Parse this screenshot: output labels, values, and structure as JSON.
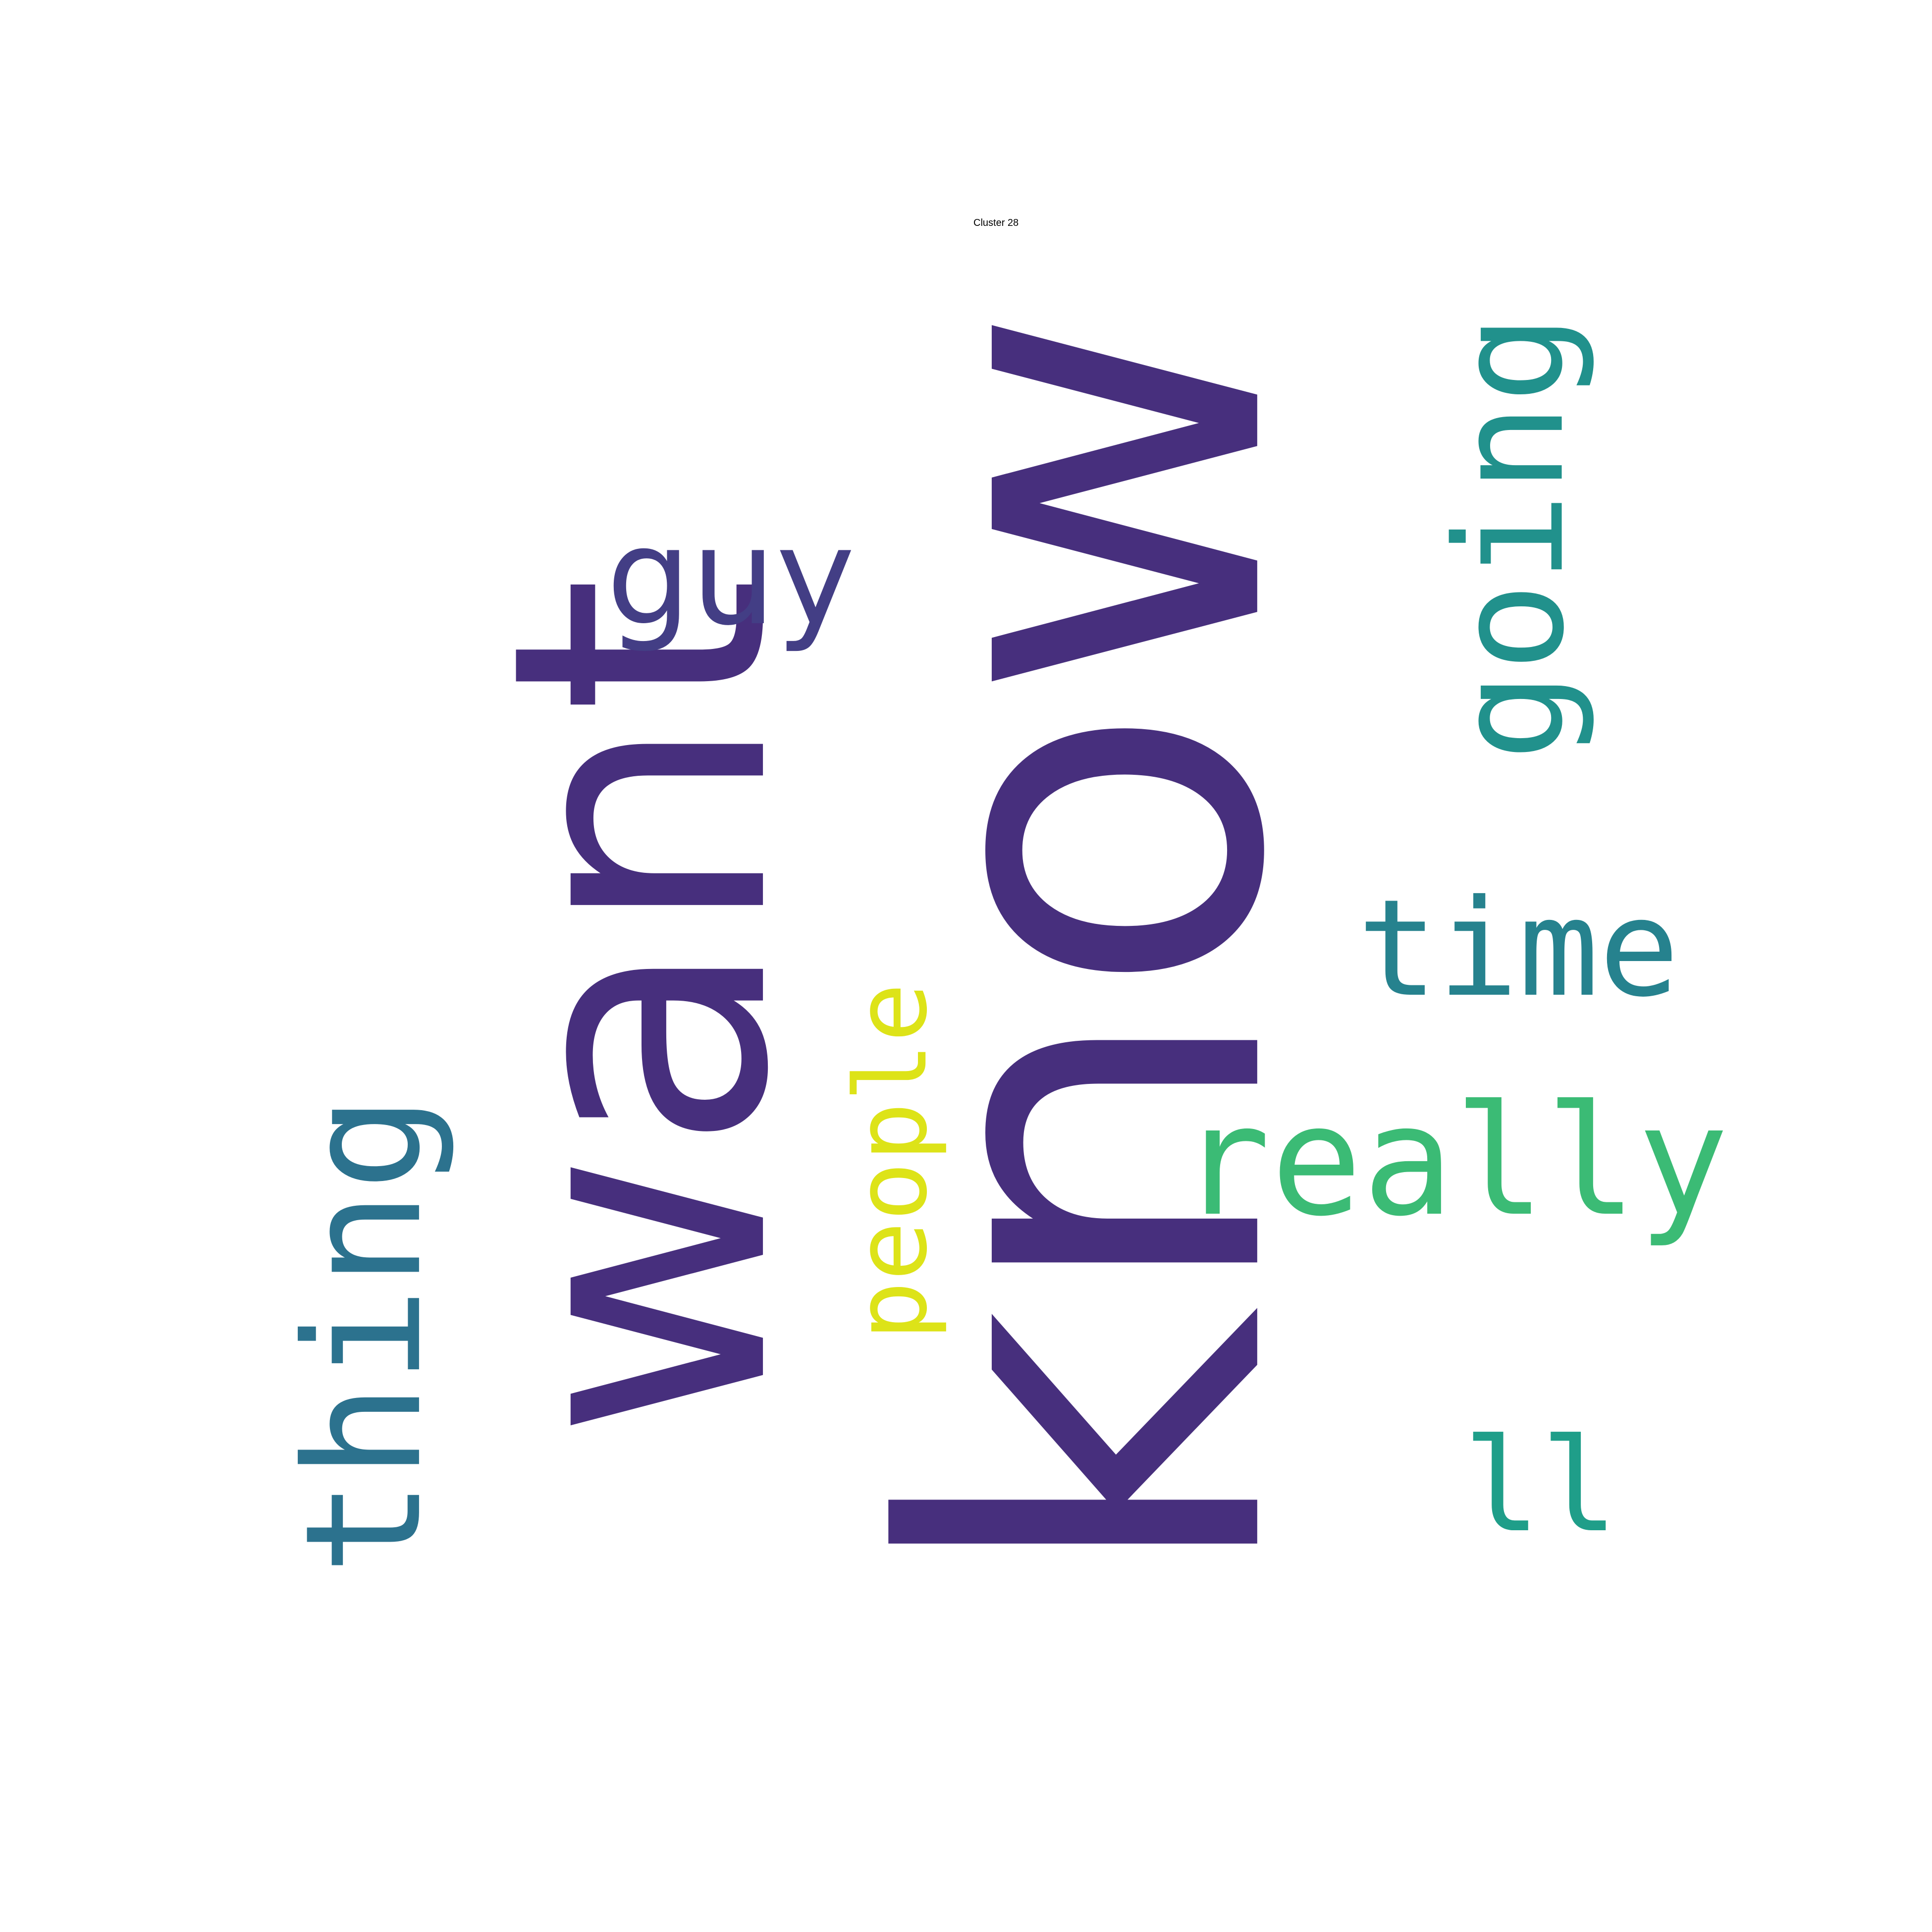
{
  "title": "Cluster 28",
  "words": [
    {
      "text": "want",
      "color": "#472f7d",
      "font": "sans",
      "rotated": true
    },
    {
      "text": "know",
      "color": "#472f7d",
      "font": "sans",
      "rotated": true
    },
    {
      "text": "guy",
      "color": "#433e85",
      "font": "sans",
      "rotated": false
    },
    {
      "text": "going",
      "color": "#21918c",
      "font": "mono",
      "rotated": true
    },
    {
      "text": "time",
      "color": "#26828e",
      "font": "mono",
      "rotated": false
    },
    {
      "text": "really",
      "color": "#3bbb75",
      "font": "mono",
      "rotated": false
    },
    {
      "text": "people",
      "color": "#dde318",
      "font": "mono",
      "rotated": true
    },
    {
      "text": "thing",
      "color": "#2c728e",
      "font": "mono",
      "rotated": true
    },
    {
      "text": "ll",
      "color": "#1f9e89",
      "font": "mono",
      "rotated": false
    }
  ]
}
